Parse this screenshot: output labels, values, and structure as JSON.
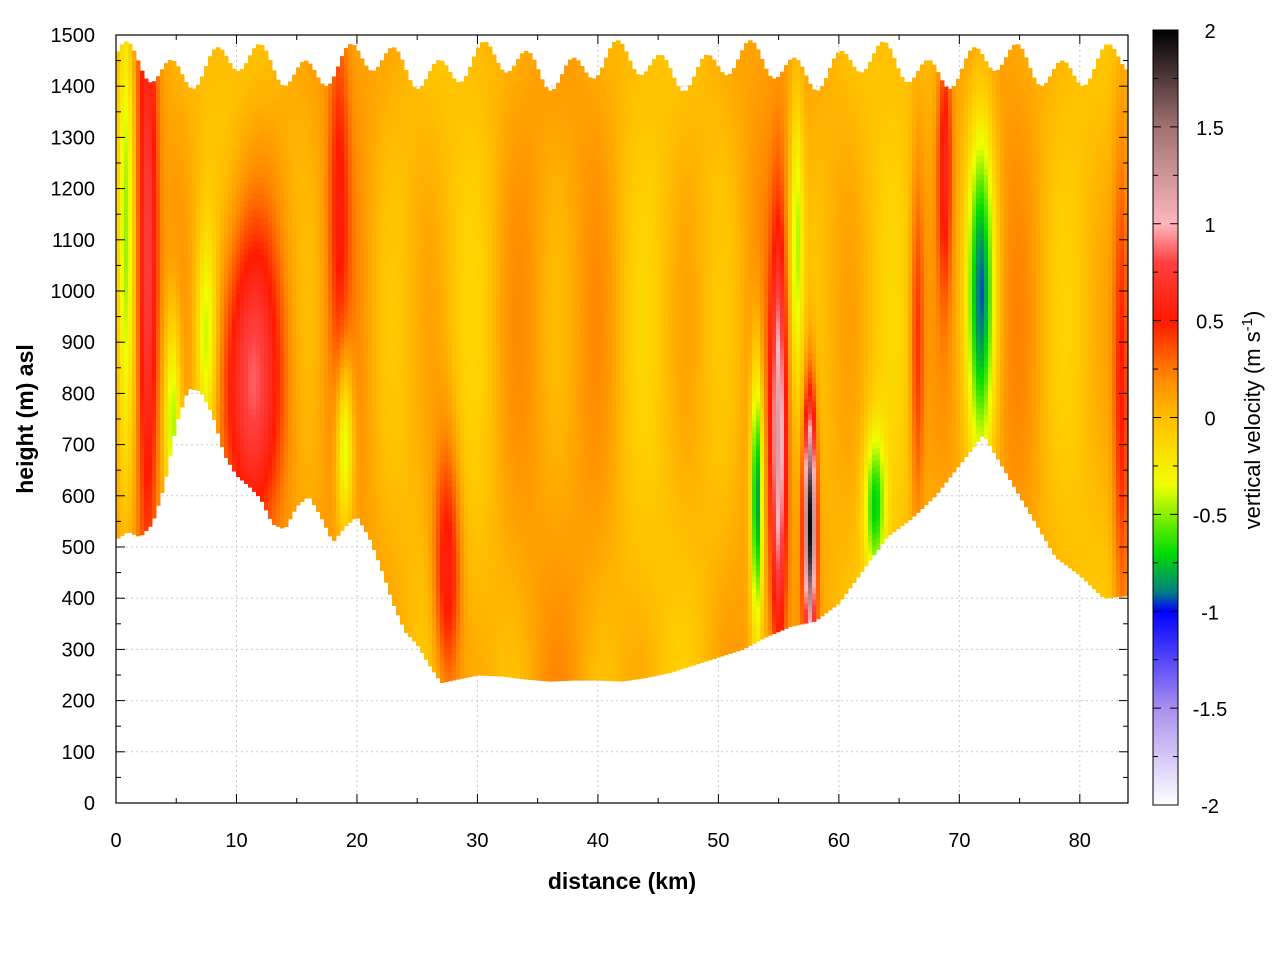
{
  "chart_data": {
    "type": "heatmap",
    "title": "",
    "xlabel": "distance (km)",
    "ylabel": "height (m) asl",
    "xlim": [
      0,
      84
    ],
    "ylim": [
      0,
      1500
    ],
    "x_ticks": [
      0,
      10,
      20,
      30,
      40,
      50,
      60,
      70,
      80
    ],
    "y_ticks": [
      0,
      100,
      200,
      300,
      400,
      500,
      600,
      700,
      800,
      900,
      1000,
      1100,
      1200,
      1300,
      1400,
      1500
    ],
    "grid": true,
    "colorbar": {
      "label_main": "vertical velocity (m s",
      "label_sup": "-1",
      "label_end": ")",
      "range": [
        -2,
        2
      ],
      "ticks": [
        2,
        1.5,
        1,
        0.5,
        0,
        -0.5,
        -1,
        -1.5,
        -2
      ],
      "stops": [
        {
          "value": -2.0,
          "color": "#ffffff"
        },
        {
          "value": -1.5,
          "color": "#a98ef0"
        },
        {
          "value": -1.0,
          "color": "#0000ff"
        },
        {
          "value": -0.9,
          "color": "#008080"
        },
        {
          "value": -0.7,
          "color": "#00dc00"
        },
        {
          "value": -0.35,
          "color": "#f0ff00"
        },
        {
          "value": -0.1,
          "color": "#ffd000"
        },
        {
          "value": 0.0,
          "color": "#ffbe00"
        },
        {
          "value": 0.2,
          "color": "#ff8a00"
        },
        {
          "value": 0.5,
          "color": "#ff1a00"
        },
        {
          "value": 0.8,
          "color": "#ff4040"
        },
        {
          "value": 1.0,
          "color": "#ffb6be"
        },
        {
          "value": 1.5,
          "color": "#a07272"
        },
        {
          "value": 2.0,
          "color": "#000000"
        }
      ]
    },
    "terrain": {
      "x": [
        0,
        1,
        2,
        3,
        4,
        5,
        6,
        7,
        8,
        9,
        10,
        11,
        12,
        13,
        14,
        15,
        16,
        17,
        18,
        19,
        20,
        21,
        22,
        23,
        24,
        25,
        26,
        27,
        28,
        30,
        32,
        34,
        36,
        38,
        40,
        42,
        44,
        46,
        48,
        50,
        52,
        54,
        56,
        58,
        60,
        62,
        64,
        66,
        68,
        70,
        72,
        74,
        76,
        78,
        80,
        82,
        84
      ],
      "y": [
        515,
        530,
        520,
        545,
        620,
        740,
        810,
        805,
        760,
        680,
        640,
        620,
        595,
        545,
        535,
        580,
        600,
        560,
        510,
        540,
        560,
        520,
        460,
        390,
        335,
        310,
        270,
        235,
        240,
        250,
        248,
        242,
        238,
        240,
        240,
        238,
        245,
        255,
        270,
        285,
        300,
        325,
        345,
        355,
        390,
        455,
        520,
        555,
        600,
        660,
        720,
        640,
        560,
        480,
        445,
        400,
        405
      ]
    },
    "top_y": 1440,
    "values": {
      "base": 0.05,
      "features": [
        {
          "x": 0.8,
          "y": 1150,
          "sx": 0.5,
          "sy": 350,
          "amp": -0.55
        },
        {
          "x": 2.6,
          "y": 1050,
          "sx": 0.6,
          "sy": 400,
          "amp": 0.75
        },
        {
          "x": 4.7,
          "y": 750,
          "sx": 0.5,
          "sy": 150,
          "amp": -0.6
        },
        {
          "x": 7.5,
          "y": 900,
          "sx": 0.6,
          "sy": 150,
          "amp": -0.5
        },
        {
          "x": 11.0,
          "y": 820,
          "sx": 2.0,
          "sy": 230,
          "amp": 0.8
        },
        {
          "x": 19.0,
          "y": 700,
          "sx": 0.5,
          "sy": 120,
          "amp": -0.6
        },
        {
          "x": 18.5,
          "y": 1200,
          "sx": 0.6,
          "sy": 250,
          "amp": 0.35
        },
        {
          "x": 27.5,
          "y": 450,
          "sx": 0.8,
          "sy": 180,
          "amp": 0.6
        },
        {
          "x": 53.2,
          "y": 600,
          "sx": 0.35,
          "sy": 180,
          "amp": -1.0
        },
        {
          "x": 55.0,
          "y": 700,
          "sx": 0.45,
          "sy": 280,
          "amp": 1.0
        },
        {
          "x": 57.6,
          "y": 550,
          "sx": 0.35,
          "sy": 160,
          "amp": 1.9
        },
        {
          "x": 56.5,
          "y": 1100,
          "sx": 0.4,
          "sy": 200,
          "amp": -0.5
        },
        {
          "x": 63.0,
          "y": 580,
          "sx": 0.6,
          "sy": 100,
          "amp": -0.7
        },
        {
          "x": 66.5,
          "y": 900,
          "sx": 0.4,
          "sy": 250,
          "amp": 0.4
        },
        {
          "x": 68.8,
          "y": 1250,
          "sx": 0.4,
          "sy": 180,
          "amp": 0.5
        },
        {
          "x": 71.8,
          "y": 1000,
          "sx": 0.8,
          "sy": 230,
          "amp": -0.95
        },
        {
          "x": 83.5,
          "y": 800,
          "sx": 0.5,
          "sy": 350,
          "amp": 0.5
        }
      ]
    }
  }
}
